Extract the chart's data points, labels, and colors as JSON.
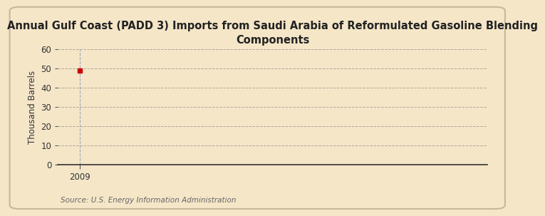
{
  "title": "Annual Gulf Coast (PADD 3) Imports from Saudi Arabia of Reformulated Gasoline Blending\nComponents",
  "ylabel": "Thousand Barrels",
  "source": "Source: U.S. Energy Information Administration",
  "x_data": [
    2009
  ],
  "y_data": [
    49
  ],
  "xlim": [
    2008.3,
    2022
  ],
  "ylim": [
    0,
    60
  ],
  "yticks": [
    0,
    10,
    20,
    30,
    40,
    50,
    60
  ],
  "xticks": [
    2009
  ],
  "background_color": "#f5e6c8",
  "plot_bg_color": "#f5e6c8",
  "marker_color": "#cc0000",
  "grid_color": "#b0a898",
  "vline_color": "#a0a8b8",
  "title_fontsize": 10.5,
  "label_fontsize": 8.5,
  "tick_fontsize": 8.5,
  "source_fontsize": 7.5
}
